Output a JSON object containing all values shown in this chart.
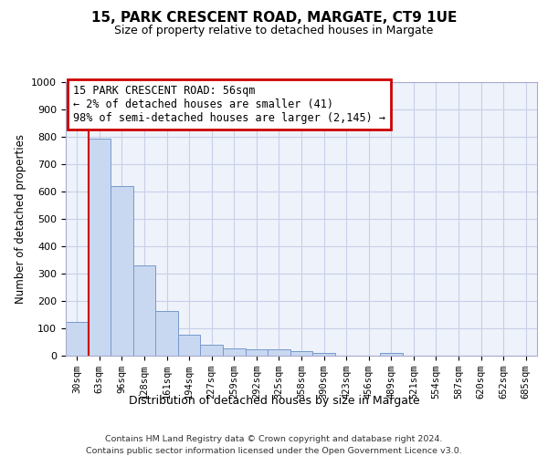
{
  "title": "15, PARK CRESCENT ROAD, MARGATE, CT9 1UE",
  "subtitle": "Size of property relative to detached houses in Margate",
  "xlabel": "Distribution of detached houses by size in Margate",
  "ylabel": "Number of detached properties",
  "bar_labels": [
    "30sqm",
    "63sqm",
    "96sqm",
    "128sqm",
    "161sqm",
    "194sqm",
    "227sqm",
    "259sqm",
    "292sqm",
    "325sqm",
    "358sqm",
    "390sqm",
    "423sqm",
    "456sqm",
    "489sqm",
    "521sqm",
    "554sqm",
    "587sqm",
    "620sqm",
    "652sqm",
    "685sqm"
  ],
  "bar_values": [
    125,
    795,
    620,
    330,
    162,
    78,
    40,
    28,
    25,
    22,
    17,
    10,
    0,
    0,
    10,
    0,
    0,
    0,
    0,
    0,
    0
  ],
  "bar_color": "#c8d8f0",
  "bar_edge_color": "#7799cc",
  "annotation_text_line1": "15 PARK CRESCENT ROAD: 56sqm",
  "annotation_text_line2": "← 2% of detached houses are smaller (41)",
  "annotation_text_line3": "98% of semi-detached houses are larger (2,145) →",
  "annotation_box_color": "#cc0000",
  "ylim": [
    0,
    1000
  ],
  "yticks": [
    0,
    100,
    200,
    300,
    400,
    500,
    600,
    700,
    800,
    900,
    1000
  ],
  "footer_line1": "Contains HM Land Registry data © Crown copyright and database right 2024.",
  "footer_line2": "Contains public sector information licensed under the Open Government Licence v3.0.",
  "bg_color": "#eef2fb",
  "grid_color": "#c8cfe8",
  "red_line_x": 0.5
}
